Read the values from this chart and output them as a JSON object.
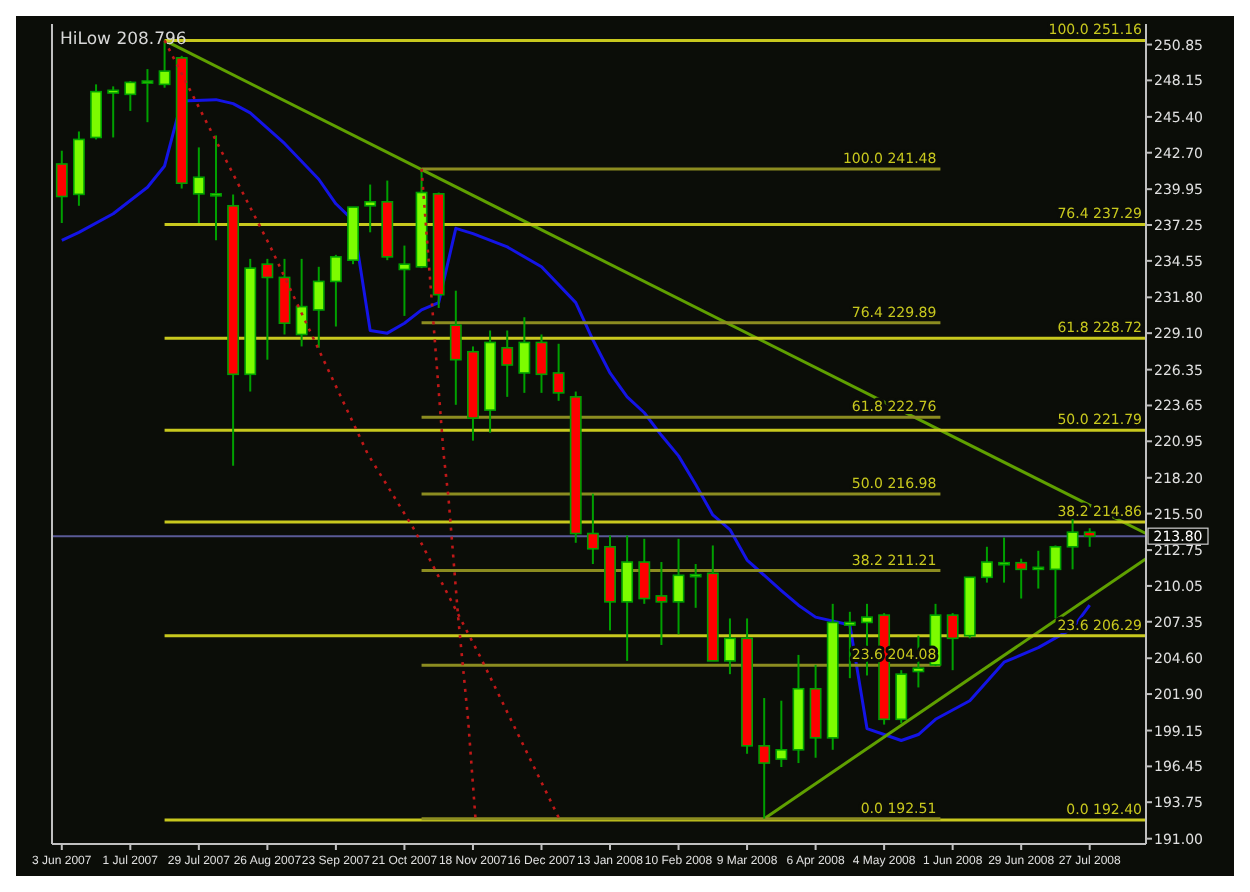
{
  "chart_data": {
    "type": "candlestick",
    "title": "HiLow 208.796",
    "x": [
      "2007-06-03",
      "2007-06-10",
      "2007-06-17",
      "2007-06-24",
      "2007-07-01",
      "2007-07-08",
      "2007-07-15",
      "2007-07-22",
      "2007-07-29",
      "2007-08-05",
      "2007-08-12",
      "2007-08-19",
      "2007-08-26",
      "2007-09-02",
      "2007-09-09",
      "2007-09-16",
      "2007-09-23",
      "2007-09-30",
      "2007-10-07",
      "2007-10-14",
      "2007-10-21",
      "2007-10-28",
      "2007-11-04",
      "2007-11-11",
      "2007-11-18",
      "2007-11-25",
      "2007-12-02",
      "2007-12-09",
      "2007-12-16",
      "2007-12-23",
      "2007-12-30",
      "2008-01-06",
      "2008-01-13",
      "2008-01-20",
      "2008-01-27",
      "2008-02-03",
      "2008-02-10",
      "2008-02-17",
      "2008-02-24",
      "2008-03-02",
      "2008-03-09",
      "2008-03-16",
      "2008-03-23",
      "2008-03-30",
      "2008-04-06",
      "2008-04-13",
      "2008-04-20",
      "2008-04-27",
      "2008-05-04",
      "2008-05-11",
      "2008-05-18",
      "2008-05-25",
      "2008-06-01",
      "2008-06-08",
      "2008-06-15",
      "2008-06-22",
      "2008-06-29",
      "2008-07-06",
      "2008-07-13",
      "2008-07-20",
      "2008-07-27"
    ],
    "ohlc": [
      [
        241.85,
        242.85,
        237.4,
        239.4
      ],
      [
        239.56,
        244.3,
        238.7,
        243.7
      ],
      [
        243.85,
        247.85,
        243.7,
        247.3
      ],
      [
        247.2,
        247.7,
        243.85,
        247.4
      ],
      [
        247.1,
        248.1,
        245.85,
        248.0
      ],
      [
        248.0,
        249.0,
        245.0,
        248.1
      ],
      [
        247.85,
        251.16,
        247.6,
        248.85
      ],
      [
        249.85,
        250.0,
        240.0,
        240.4
      ],
      [
        239.6,
        243.1,
        237.4,
        240.85
      ],
      [
        239.5,
        244.0,
        236.1,
        239.6
      ],
      [
        238.7,
        239.55,
        219.1,
        226.0
      ],
      [
        226.0,
        234.7,
        224.7,
        234.0
      ],
      [
        234.3,
        234.7,
        227.1,
        233.3
      ],
      [
        233.3,
        234.7,
        229.0,
        229.85
      ],
      [
        229.0,
        234.7,
        228.1,
        231.1
      ],
      [
        230.85,
        234.1,
        228.0,
        233.0
      ],
      [
        233.0,
        235.0,
        229.6,
        234.85
      ],
      [
        234.6,
        238.6,
        234.3,
        238.6
      ],
      [
        238.7,
        240.3,
        236.7,
        239.0
      ],
      [
        239.0,
        240.6,
        234.6,
        234.85
      ],
      [
        233.9,
        235.7,
        230.4,
        234.3
      ],
      [
        234.1,
        241.48,
        234.0,
        239.7
      ],
      [
        239.6,
        239.7,
        231.0,
        232.0
      ],
      [
        229.7,
        232.3,
        223.7,
        227.1
      ],
      [
        227.7,
        228.1,
        221.0,
        222.7
      ],
      [
        223.3,
        229.3,
        221.6,
        228.4
      ],
      [
        228.0,
        229.3,
        224.3,
        226.7
      ],
      [
        226.1,
        230.3,
        224.6,
        228.4
      ],
      [
        228.4,
        229.0,
        224.6,
        226.0
      ],
      [
        226.1,
        228.3,
        224.0,
        224.6
      ],
      [
        224.3,
        224.7,
        213.3,
        214.0
      ],
      [
        214.0,
        217.0,
        211.7,
        212.85
      ],
      [
        213.0,
        213.85,
        206.7,
        208.85
      ],
      [
        208.85,
        213.85,
        204.4,
        211.85
      ],
      [
        211.85,
        213.6,
        208.7,
        209.1
      ],
      [
        209.3,
        211.85,
        205.6,
        208.85
      ],
      [
        208.85,
        213.6,
        206.4,
        210.85
      ],
      [
        210.85,
        211.7,
        208.4,
        210.9
      ],
      [
        211.0,
        213.1,
        204.4,
        204.4
      ],
      [
        204.4,
        207.6,
        203.4,
        206.1
      ],
      [
        206.1,
        207.6,
        197.4,
        198.0
      ],
      [
        198.0,
        201.6,
        192.51,
        196.7
      ],
      [
        197.0,
        201.4,
        196.4,
        197.7
      ],
      [
        197.7,
        204.85,
        196.7,
        202.3
      ],
      [
        202.3,
        204.1,
        197.1,
        198.6
      ],
      [
        198.6,
        208.7,
        197.7,
        207.3
      ],
      [
        207.1,
        208.1,
        203.1,
        207.3
      ],
      [
        207.3,
        208.7,
        203.3,
        207.7
      ],
      [
        207.85,
        208.0,
        199.6,
        200.0
      ],
      [
        200.0,
        203.7,
        199.7,
        203.4
      ],
      [
        203.6,
        206.3,
        202.4,
        203.85
      ],
      [
        204.1,
        208.7,
        204.0,
        207.85
      ],
      [
        207.85,
        208.0,
        203.7,
        206.1
      ],
      [
        206.3,
        210.7,
        206.1,
        210.7
      ],
      [
        210.7,
        213.0,
        210.3,
        211.85
      ],
      [
        211.7,
        213.7,
        210.3,
        211.8
      ],
      [
        211.8,
        212.1,
        209.1,
        211.3
      ],
      [
        211.3,
        212.7,
        209.85,
        211.45
      ],
      [
        211.3,
        213.1,
        207.6,
        213.0
      ],
      [
        213.0,
        215.6,
        211.3,
        214.1
      ],
      [
        214.1,
        214.4,
        213.0,
        213.8
      ]
    ],
    "colors": [
      "#ff0000",
      "#7cfc00",
      "#7cfc00",
      "#7cfc00",
      "#7cfc00",
      "#7cfc00",
      "#7cfc00",
      "#ff0000",
      "#7cfc00",
      "#7cfc00",
      "#ff0000",
      "#7cfc00",
      "#ff0000",
      "#ff0000",
      "#7cfc00",
      "#7cfc00",
      "#7cfc00",
      "#7cfc00",
      "#7cfc00",
      "#ff0000",
      "#7cfc00",
      "#7cfc00",
      "#ff0000",
      "#ff0000",
      "#ff0000",
      "#7cfc00",
      "#ff0000",
      "#7cfc00",
      "#ff0000",
      "#ff0000",
      "#ff0000",
      "#ff0000",
      "#ff0000",
      "#7cfc00",
      "#ff0000",
      "#ff0000",
      "#7cfc00",
      "#7cfc00",
      "#ff0000",
      "#7cfc00",
      "#ff0000",
      "#ff0000",
      "#7cfc00",
      "#7cfc00",
      "#ff0000",
      "#7cfc00",
      "#7cfc00",
      "#7cfc00",
      "#ff0000",
      "#7cfc00",
      "#7cfc00",
      "#7cfc00",
      "#ff0000",
      "#7cfc00",
      "#7cfc00",
      "#7cfc00",
      "#ff0000",
      "#7cfc00",
      "#7cfc00",
      "#7cfc00",
      "#ff0000"
    ],
    "series": [
      {
        "type": "line",
        "color": "#1414e6",
        "x": [
          "2007-06-03",
          "2007-06-10",
          "2007-06-24",
          "2007-07-08",
          "2007-07-15",
          "2007-07-22",
          "2007-08-05",
          "2007-08-12",
          "2007-08-19",
          "2007-09-02",
          "2007-09-16",
          "2007-09-23",
          "2007-09-30",
          "2007-10-07",
          "2007-10-14",
          "2007-10-21",
          "2007-10-28",
          "2007-11-04",
          "2007-11-11",
          "2007-11-18",
          "2007-12-02",
          "2007-12-16",
          "2007-12-30",
          "2008-01-06",
          "2008-01-13",
          "2008-01-20",
          "2008-01-27",
          "2008-02-03",
          "2008-02-10",
          "2008-02-17",
          "2008-02-24",
          "2008-03-02",
          "2008-03-09",
          "2008-03-23",
          "2008-03-30",
          "2008-04-06",
          "2008-04-20",
          "2008-04-27",
          "2008-05-04",
          "2008-05-11",
          "2008-05-18",
          "2008-05-25",
          "2008-06-08",
          "2008-06-22",
          "2008-07-06",
          "2008-07-20",
          "2008-07-27"
        ],
        "values": [
          236.1,
          236.7,
          238.1,
          240.1,
          241.7,
          246.6,
          246.7,
          246.4,
          245.7,
          243.4,
          240.7,
          238.85,
          237.6,
          229.3,
          229.1,
          229.85,
          230.85,
          231.4,
          237.0,
          236.6,
          235.6,
          234.1,
          231.4,
          228.6,
          226.1,
          224.3,
          223.1,
          221.4,
          219.85,
          217.7,
          215.4,
          214.3,
          212.0,
          209.7,
          208.6,
          207.7,
          207.1,
          199.3,
          198.85,
          198.4,
          198.85,
          200.0,
          201.4,
          204.3,
          205.4,
          206.85,
          208.6
        ]
      },
      {
        "type": "line",
        "color": "#5fa000",
        "x": [
          "2007-07-15",
          "2008-08-19"
        ],
        "values": [
          251.16,
          214.0
        ]
      },
      {
        "type": "line",
        "color": "#5fa000",
        "x": [
          "2008-03-16",
          "2008-08-19"
        ],
        "values": [
          192.51,
          212.1
        ]
      },
      {
        "type": "line",
        "color": "#c01818",
        "line_style": "dotted",
        "x": [
          "2007-07-15",
          "2007-08-27",
          "2007-10-06",
          "2007-10-25",
          "2007-11-21",
          "2007-12-23"
        ],
        "values": [
          251.16,
          235.7,
          220.0,
          214.3,
          204.7,
          192.6
        ]
      },
      {
        "type": "line",
        "color": "#c01818",
        "line_style": "dotted",
        "x": [
          "2007-10-28",
          "2007-11-06",
          "2007-11-08",
          "2007-11-12",
          "2007-11-16",
          "2007-11-19"
        ],
        "values": [
          241.48,
          220.0,
          216.7,
          207.6,
          200.0,
          192.6
        ]
      },
      {
        "type": "line",
        "color": "#c8c81e",
        "x": [
          "2007-07-15",
          "2008-08-19"
        ],
        "values": [
          251.16,
          251.16
        ]
      },
      {
        "type": "line",
        "color": "#c8c81e",
        "x": [
          "2007-07-15",
          "2008-08-19"
        ],
        "values": [
          237.29,
          237.29
        ]
      },
      {
        "type": "line",
        "color": "#c8c81e",
        "x": [
          "2007-07-15",
          "2008-08-19"
        ],
        "values": [
          228.72,
          228.72
        ]
      },
      {
        "type": "line",
        "color": "#c8c81e",
        "x": [
          "2007-07-15",
          "2008-08-19"
        ],
        "values": [
          221.79,
          221.79
        ]
      },
      {
        "type": "line",
        "color": "#c8c81e",
        "x": [
          "2007-07-15",
          "2008-08-19"
        ],
        "values": [
          214.86,
          214.86
        ]
      },
      {
        "type": "line",
        "color": "#c8c81e",
        "x": [
          "2007-07-15",
          "2008-08-19"
        ],
        "values": [
          206.29,
          206.29
        ]
      },
      {
        "type": "line",
        "color": "#c8c81e",
        "x": [
          "2007-07-15",
          "2008-08-19"
        ],
        "values": [
          192.4,
          192.4
        ]
      },
      {
        "type": "line",
        "color": "#8c8c20",
        "x": [
          "2007-10-28",
          "2008-05-27"
        ],
        "values": [
          241.48,
          241.48
        ]
      },
      {
        "type": "line",
        "color": "#8c8c20",
        "x": [
          "2007-10-28",
          "2008-05-27"
        ],
        "values": [
          229.89,
          229.89
        ]
      },
      {
        "type": "line",
        "color": "#8c8c20",
        "x": [
          "2007-10-28",
          "2008-05-27"
        ],
        "values": [
          222.76,
          222.76
        ]
      },
      {
        "type": "line",
        "color": "#8c8c20",
        "x": [
          "2007-10-28",
          "2008-05-27"
        ],
        "values": [
          216.98,
          216.98
        ]
      },
      {
        "type": "line",
        "color": "#8c8c20",
        "x": [
          "2007-10-28",
          "2008-05-27"
        ],
        "values": [
          211.21,
          211.21
        ]
      },
      {
        "type": "line",
        "color": "#8c8c20",
        "x": [
          "2007-10-28",
          "2008-05-27"
        ],
        "values": [
          204.08,
          204.08
        ]
      },
      {
        "type": "line",
        "color": "#8c8c20",
        "x": [
          "2007-10-28",
          "2008-05-27"
        ],
        "values": [
          192.51,
          192.51
        ]
      }
    ],
    "annotations": [
      {
        "text": "100.0  251.16",
        "x": "2008-08-19",
        "y": 251.16
      },
      {
        "text": "76.4  237.29",
        "x": "2008-08-19",
        "y": 237.29
      },
      {
        "text": "61.8  228.72",
        "x": "2008-08-19",
        "y": 228.72
      },
      {
        "text": "50.0  221.79",
        "x": "2008-08-19",
        "y": 221.79
      },
      {
        "text": "38.2  214.86",
        "x": "2008-08-19",
        "y": 214.86
      },
      {
        "text": "23.6  206.29",
        "x": "2008-08-19",
        "y": 206.29
      },
      {
        "text": "0.0  192.40",
        "x": "2008-08-19",
        "y": 192.4
      },
      {
        "text": "100.0  241.48",
        "x": "2008-05-27",
        "y": 241.48
      },
      {
        "text": "76.4  229.89",
        "x": "2008-05-27",
        "y": 229.89
      },
      {
        "text": "61.8  222.76",
        "x": "2008-05-27",
        "y": 222.76
      },
      {
        "text": "50.0  216.98",
        "x": "2008-05-27",
        "y": 216.98
      },
      {
        "text": "38.2  211.21",
        "x": "2008-05-27",
        "y": 211.21
      },
      {
        "text": "23.6  204.08",
        "x": "2008-05-27",
        "y": 204.08
      },
      {
        "text": "0.0  192.51",
        "x": "2008-05-27",
        "y": 192.51
      }
    ],
    "ref_lines": [
      {
        "axis": "y",
        "value": 213.8,
        "label": "213.80",
        "color": "#5a5a96"
      }
    ],
    "xlim": [
      "2007-05-30",
      "2008-08-19"
    ],
    "xticks": [
      {
        "value": "2007-06-03",
        "label": "3 Jun 2007"
      },
      {
        "value": "2007-07-01",
        "label": "1 Jul 2007"
      },
      {
        "value": "2007-07-29",
        "label": "29 Jul 2007"
      },
      {
        "value": "2007-08-26",
        "label": "26 Aug 2007"
      },
      {
        "value": "2007-09-23",
        "label": "23 Sep 2007"
      },
      {
        "value": "2007-10-21",
        "label": "21 Oct 2007"
      },
      {
        "value": "2007-11-18",
        "label": "18 Nov 2007"
      },
      {
        "value": "2007-12-16",
        "label": "16 Dec 2007"
      },
      {
        "value": "2008-01-13",
        "label": "13 Jan 2008"
      },
      {
        "value": "2008-02-10",
        "label": "10 Feb 2008"
      },
      {
        "value": "2008-03-09",
        "label": "9 Mar 2008"
      },
      {
        "value": "2008-04-06",
        "label": "6 Apr 2008"
      },
      {
        "value": "2008-05-04",
        "label": "4 May 2008"
      },
      {
        "value": "2008-06-01",
        "label": "1 Jun 2008"
      },
      {
        "value": "2008-06-29",
        "label": "29 Jun 2008"
      },
      {
        "value": "2008-07-27",
        "label": "27 Jul 2008"
      }
    ],
    "ylim": [
      190.6,
      252.4
    ],
    "yticks": [
      {
        "value": 250.85,
        "label": "250.85"
      },
      {
        "value": 248.15,
        "label": "248.15"
      },
      {
        "value": 245.4,
        "label": "245.40"
      },
      {
        "value": 242.7,
        "label": "242.70"
      },
      {
        "value": 239.95,
        "label": "239.95"
      },
      {
        "value": 237.25,
        "label": "237.25"
      },
      {
        "value": 234.55,
        "label": "234.55"
      },
      {
        "value": 231.8,
        "label": "231.80"
      },
      {
        "value": 229.1,
        "label": "229.10"
      },
      {
        "value": 226.35,
        "label": "226.35"
      },
      {
        "value": 223.65,
        "label": "223.65"
      },
      {
        "value": 220.95,
        "label": "220.95"
      },
      {
        "value": 218.2,
        "label": "218.20"
      },
      {
        "value": 215.5,
        "label": "215.50"
      },
      {
        "value": 212.75,
        "label": "212.75"
      },
      {
        "value": 210.05,
        "label": "210.05"
      },
      {
        "value": 207.35,
        "label": "207.35"
      },
      {
        "value": 204.6,
        "label": "204.60"
      },
      {
        "value": 201.9,
        "label": "201.90"
      },
      {
        "value": 199.15,
        "label": "199.15"
      },
      {
        "value": 196.45,
        "label": "196.45"
      },
      {
        "value": 193.75,
        "label": "193.75"
      },
      {
        "value": 191.0,
        "label": "191.00"
      }
    ]
  }
}
